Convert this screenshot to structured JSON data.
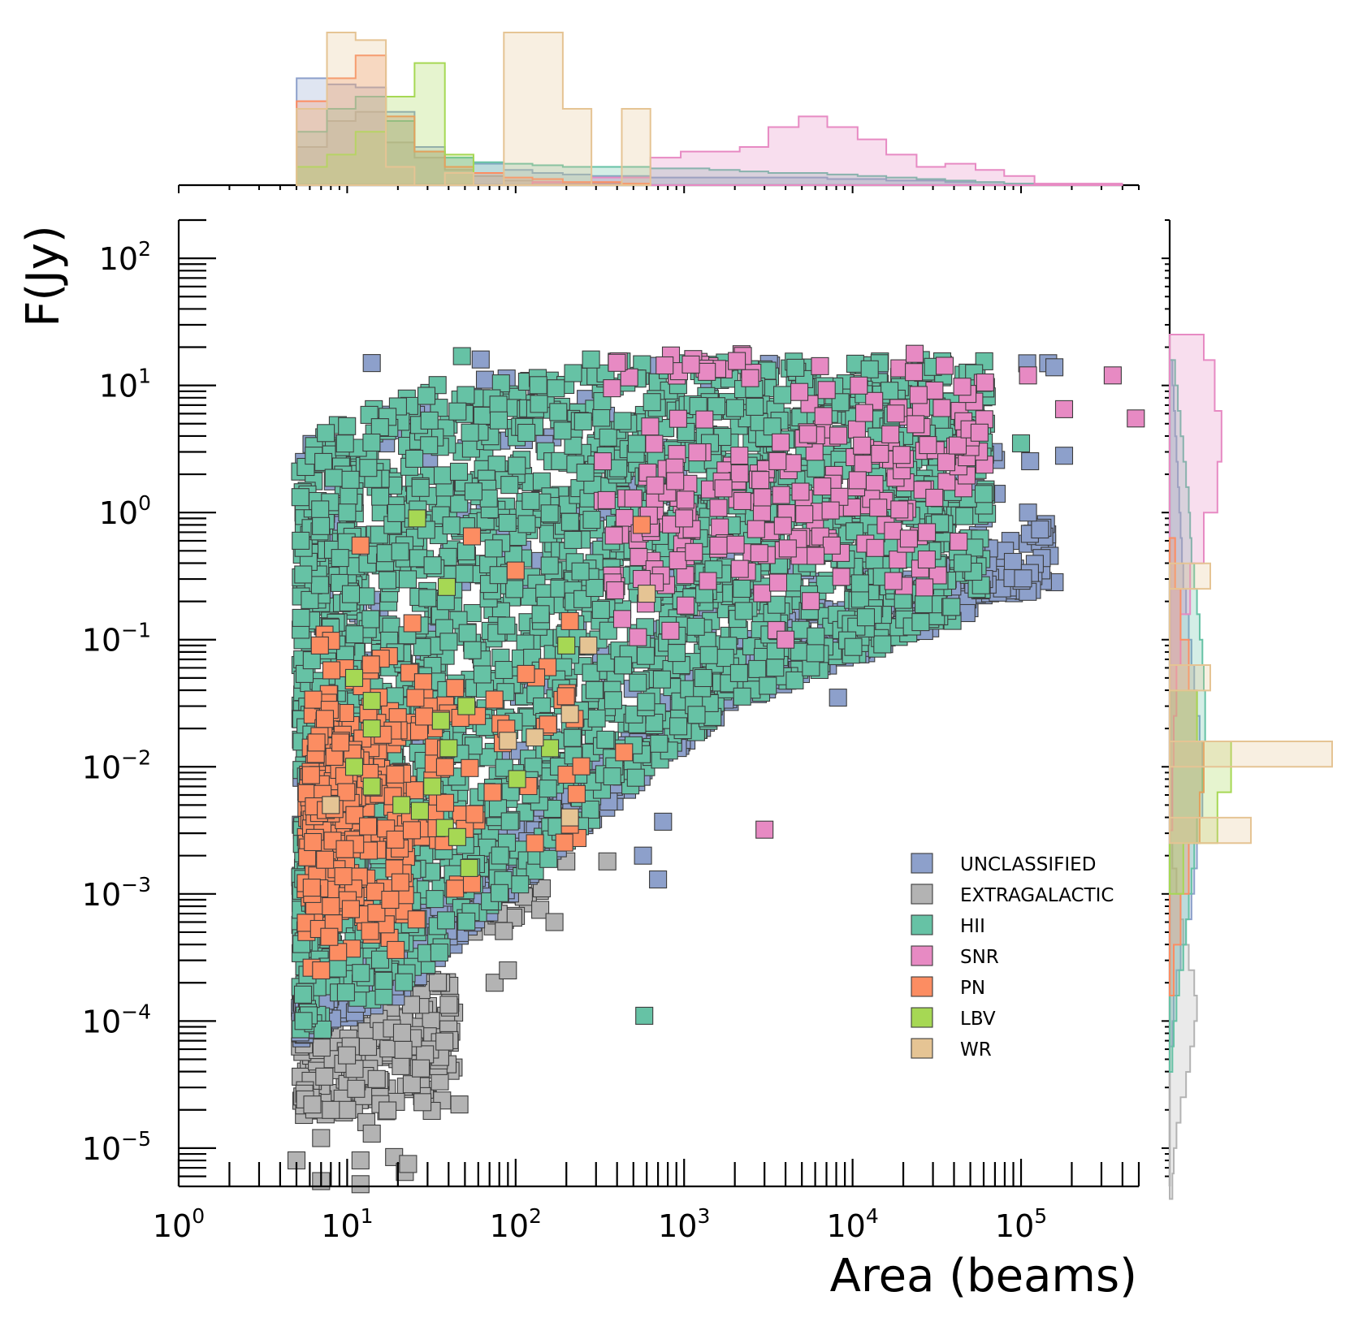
{
  "chart_data": {
    "type": "scatter",
    "xlabel": "Area (beams)",
    "ylabel": "F(Jy)",
    "xscale": "log",
    "yscale": "log",
    "xlim": [
      1,
      500000
    ],
    "ylim": [
      5e-06,
      200
    ],
    "x_tick_labels": [
      {
        "v": 1,
        "base": "10",
        "exp": "0"
      },
      {
        "v": 10,
        "base": "10",
        "exp": "1"
      },
      {
        "v": 100,
        "base": "10",
        "exp": "2"
      },
      {
        "v": 1000,
        "base": "10",
        "exp": "3"
      },
      {
        "v": 10000,
        "base": "10",
        "exp": "4"
      },
      {
        "v": 100000,
        "base": "10",
        "exp": "5"
      }
    ],
    "y_tick_labels": [
      {
        "v": 1e-05,
        "base": "10",
        "exp": "−5"
      },
      {
        "v": 0.0001,
        "base": "10",
        "exp": "−4"
      },
      {
        "v": 0.001,
        "base": "10",
        "exp": "−3"
      },
      {
        "v": 0.01,
        "base": "10",
        "exp": "−2"
      },
      {
        "v": 0.1,
        "base": "10",
        "exp": "−1"
      },
      {
        "v": 1,
        "base": "10",
        "exp": "0"
      },
      {
        "v": 10,
        "base": "10",
        "exp": "1"
      },
      {
        "v": 100,
        "base": "10",
        "exp": "2"
      }
    ],
    "grid": false,
    "legend_position": "lower-right",
    "marginal_histograms": [
      "top",
      "right"
    ],
    "series": [
      {
        "name": "UNCLASSIFIED",
        "color": "#8da0cb",
        "approx_points": 2200,
        "points": [
          [
            14,
            15
          ],
          [
            62,
            16
          ],
          [
            17,
            3.5
          ],
          [
            9,
            0.8
          ],
          [
            5.5,
            1.0
          ],
          [
            4000,
            0.1
          ],
          [
            8200,
            0.035
          ],
          [
            15000,
            0.1
          ],
          [
            29000,
            0.22
          ],
          [
            180000,
            2.8
          ],
          [
            110000,
            1.0
          ],
          [
            570,
            0.002
          ],
          [
            700,
            0.0013
          ],
          [
            750,
            0.0037
          ],
          [
            260,
            0.004
          ],
          [
            12000,
            0.6
          ],
          [
            60000,
            0.9
          ]
        ],
        "histogram_x": {
          "bins_log10": [
            0.7,
            0.88,
            1.05,
            1.23,
            1.4,
            1.58,
            1.75,
            1.93,
            2.1,
            2.28,
            2.45,
            2.63,
            2.8,
            2.98,
            3.15,
            3.33,
            3.5,
            3.68,
            3.85,
            4.03,
            4.2,
            4.38,
            4.55,
            4.73,
            4.9,
            5.08
          ],
          "counts": [
            0.7,
            0.66,
            0.64,
            0.48,
            0.25,
            0.18,
            0.14,
            0.1,
            0.08,
            0.07,
            0.06,
            0.06,
            0.05,
            0.05,
            0.05,
            0.05,
            0.05,
            0.05,
            0.04,
            0.04,
            0.03,
            0.03,
            0.02,
            0.02,
            0.01
          ]
        },
        "histogram_y": {
          "bins_log10": [
            -4.2,
            -4,
            -3.8,
            -3.6,
            -3.4,
            -3.2,
            -3,
            -2.8,
            -2.6,
            -2.4,
            -2.2,
            -2,
            -1.8,
            -1.6,
            -1.4,
            -1.2,
            -1,
            -0.8,
            -0.6,
            -0.4,
            -0.2,
            0,
            0.2,
            0.4,
            0.6,
            0.8,
            1,
            1.2
          ],
          "counts": [
            0.02,
            0.03,
            0.05,
            0.08,
            0.12,
            0.16,
            0.18,
            0.2,
            0.22,
            0.24,
            0.25,
            0.24,
            0.22,
            0.2,
            0.18,
            0.16,
            0.14,
            0.12,
            0.1,
            0.09,
            0.08,
            0.07,
            0.06,
            0.05,
            0.04,
            0.03,
            0.02
          ]
        }
      },
      {
        "name": "EXTRAGALACTIC",
        "color": "#b3b3b3",
        "approx_points": 400,
        "points": [
          [
            10,
            2e-05
          ],
          [
            8,
            2e-05
          ],
          [
            13,
            1.6e-05
          ],
          [
            14,
            1.3e-05
          ],
          [
            7,
            1.2e-05
          ],
          [
            12,
            8e-06
          ],
          [
            19,
            8.5e-06
          ],
          [
            5,
            8e-06
          ],
          [
            7,
            5.5e-06
          ],
          [
            12,
            5.2e-06
          ],
          [
            22,
            6.5e-06
          ],
          [
            28,
            2.3e-05
          ],
          [
            23,
            7.5e-06
          ],
          [
            75,
            0.0002
          ],
          [
            90,
            0.00025
          ],
          [
            140,
            0.00075
          ],
          [
            170,
            0.0006
          ],
          [
            200,
            0.0018
          ],
          [
            350,
            0.0018
          ]
        ],
        "histogram_x": {
          "bins_log10": [
            0.7,
            0.88,
            1.05,
            1.23,
            1.4,
            1.58,
            1.75,
            1.93,
            2.1,
            2.28,
            2.45,
            2.63,
            2.8
          ],
          "counts": [
            0.25,
            0.42,
            0.48,
            0.28,
            0.18,
            0.1,
            0.06,
            0.03,
            0.02,
            0.01,
            0.01,
            0.01
          ]
        },
        "histogram_y": {
          "bins_log10": [
            -5.4,
            -5.2,
            -5,
            -4.8,
            -4.6,
            -4.4,
            -4.2,
            -4,
            -3.8,
            -3.6,
            -3.4,
            -3.2,
            -3,
            -2.8,
            -2.6
          ],
          "counts": [
            0.02,
            0.03,
            0.05,
            0.08,
            0.12,
            0.15,
            0.18,
            0.2,
            0.18,
            0.14,
            0.1,
            0.08,
            0.05,
            0.02
          ]
        }
      },
      {
        "name": "HII",
        "color": "#66c2a5",
        "approx_points": 6000,
        "points": [
          [
            280,
            16
          ],
          [
            48,
            17
          ],
          [
            10,
            1.0
          ],
          [
            5.3,
            0.6
          ],
          [
            5.5,
            0.0001
          ],
          [
            580,
            0.00011
          ],
          [
            30000,
            14
          ],
          [
            60000,
            1.4
          ],
          [
            45000,
            0.4
          ],
          [
            100000,
            3.5
          ],
          [
            12000,
            0.15
          ]
        ],
        "histogram_x": {
          "bins_log10": [
            0.7,
            0.88,
            1.05,
            1.23,
            1.4,
            1.58,
            1.75,
            1.93,
            2.1,
            2.28,
            2.45,
            2.63,
            2.8,
            2.98,
            3.15,
            3.33,
            3.5,
            3.68,
            3.85,
            4.03,
            4.2,
            4.38,
            4.55,
            4.73,
            4.9,
            5.08
          ],
          "counts": [
            0.35,
            0.5,
            0.58,
            0.42,
            0.22,
            0.18,
            0.15,
            0.14,
            0.13,
            0.12,
            0.12,
            0.12,
            0.11,
            0.11,
            0.1,
            0.09,
            0.08,
            0.08,
            0.07,
            0.06,
            0.05,
            0.04,
            0.03,
            0.02,
            0.01
          ]
        },
        "histogram_y": {
          "bins_log10": [
            -4.4,
            -4.2,
            -4,
            -3.8,
            -3.6,
            -3.4,
            -3.2,
            -3,
            -2.8,
            -2.6,
            -2.4,
            -2.2,
            -2,
            -1.8,
            -1.6,
            -1.4,
            -1.2,
            -1,
            -0.8,
            -0.6,
            -0.4,
            -0.2,
            0,
            0.2,
            0.4,
            0.6,
            0.8,
            1,
            1.2
          ],
          "counts": [
            0.02,
            0.03,
            0.05,
            0.07,
            0.1,
            0.12,
            0.14,
            0.16,
            0.18,
            0.2,
            0.22,
            0.24,
            0.25,
            0.26,
            0.26,
            0.25,
            0.24,
            0.22,
            0.2,
            0.18,
            0.16,
            0.15,
            0.14,
            0.12,
            0.1,
            0.08,
            0.06,
            0.04
          ]
        }
      },
      {
        "name": "SNR",
        "color": "#e78ac3",
        "approx_points": 300,
        "points": [
          [
            350000,
            12
          ],
          [
            480000,
            5.5
          ],
          [
            180000,
            6.5
          ],
          [
            110000,
            12
          ],
          [
            3000,
            0.0032
          ],
          [
            4000,
            0.1
          ],
          [
            560,
            0.3
          ],
          [
            1000,
            0.9
          ]
        ],
        "histogram_x": {
          "bins_log10": [
            2.1,
            2.45,
            2.8,
            2.98,
            3.15,
            3.33,
            3.5,
            3.68,
            3.85,
            4.03,
            4.2,
            4.38,
            4.55,
            4.73,
            4.9,
            5.08,
            5.25,
            5.43,
            5.6
          ],
          "counts": [
            0.02,
            0.05,
            0.18,
            0.22,
            0.22,
            0.25,
            0.38,
            0.45,
            0.38,
            0.3,
            0.2,
            0.12,
            0.14,
            0.1,
            0.06,
            0.01,
            0.01,
            0.01
          ]
        },
        "histogram_y": {
          "bins_log10": [
            -2.5,
            -2,
            -1.6,
            -1.2,
            -0.8,
            -0.4,
            0,
            0.4,
            0.8,
            1.2
          ],
          "counts": [
            0.02,
            0.03,
            0.05,
            0.08,
            0.15,
            0.25,
            0.35,
            0.38,
            0.33,
            0.25
          ]
        }
      },
      {
        "name": "PN",
        "color": "#fc8d62",
        "approx_points": 700,
        "points": [
          [
            12,
            0.55
          ],
          [
            55,
            0.65
          ],
          [
            100,
            0.35
          ],
          [
            210,
            0.14
          ],
          [
            560,
            0.8
          ],
          [
            440,
            0.013
          ],
          [
            210,
            0.0035
          ],
          [
            55,
            0.0012
          ],
          [
            7,
            0.00025
          ],
          [
            8,
            0.0008
          ],
          [
            18,
            0.0009
          ]
        ],
        "histogram_x": {
          "bins_log10": [
            0.7,
            0.88,
            1.05,
            1.23,
            1.4,
            1.58,
            1.75,
            1.93,
            2.1,
            2.28,
            2.45,
            2.63,
            2.8
          ],
          "counts": [
            0.55,
            0.7,
            0.85,
            0.45,
            0.22,
            0.12,
            0.08,
            0.05,
            0.04,
            0.02,
            0.02,
            0.01
          ]
        },
        "histogram_y": {
          "bins_log10": [
            -3.8,
            -3.4,
            -3,
            -2.6,
            -2.2,
            -1.8,
            -1.4,
            -1,
            -0.6,
            -0.2
          ],
          "counts": [
            0.03,
            0.08,
            0.14,
            0.22,
            0.25,
            0.2,
            0.14,
            0.08,
            0.04
          ]
        }
      },
      {
        "name": "LBV",
        "color": "#a6d854",
        "approx_points": 26,
        "points": [
          [
            26,
            0.9
          ],
          [
            39,
            0.26
          ],
          [
            200,
            0.09
          ],
          [
            11,
            0.05
          ],
          [
            14,
            0.033
          ],
          [
            36,
            0.023
          ],
          [
            51,
            0.03
          ],
          [
            14,
            0.02
          ],
          [
            11,
            0.01
          ],
          [
            40,
            0.014
          ],
          [
            102,
            0.008
          ],
          [
            160,
            0.014
          ],
          [
            14,
            0.007
          ],
          [
            21,
            0.005
          ],
          [
            32,
            0.007
          ],
          [
            38,
            0.0033
          ],
          [
            45,
            0.0028
          ],
          [
            53,
            0.0016
          ],
          [
            27,
            0.0045
          ]
        ],
        "histogram_x": {
          "bins_log10": [
            0.7,
            0.88,
            1.05,
            1.23,
            1.4,
            1.58,
            1.75
          ],
          "counts": [
            0.12,
            0.2,
            0.35,
            0.58,
            0.8,
            0.2
          ]
        },
        "histogram_y": {
          "bins_log10": [
            -3,
            -2.6,
            -2.2,
            -1.8,
            -1.4
          ],
          "counts": [
            0.1,
            0.35,
            0.45,
            0.2
          ]
        }
      },
      {
        "name": "WR",
        "color": "#e5c494",
        "approx_points": 10,
        "points": [
          [
            600,
            0.23
          ],
          [
            270,
            0.09
          ],
          [
            210,
            0.026
          ],
          [
            90,
            0.016
          ],
          [
            130,
            0.017
          ],
          [
            8,
            0.005
          ],
          [
            210,
            0.004
          ]
        ],
        "histogram_x": {
          "bins_log10": [
            0.7,
            0.88,
            1.05,
            1.23,
            1.4,
            1.58,
            1.75,
            1.93,
            2.1,
            2.28,
            2.45,
            2.63,
            2.8
          ],
          "counts": [
            0.5,
            1.0,
            0.95,
            0.12,
            0.0,
            0.08,
            0.0,
            1.0,
            1.0,
            0.5,
            0.0,
            0.5
          ]
        },
        "histogram_y": {
          "bins_log10": [
            -2.6,
            -2.4,
            -2.2,
            -2,
            -1.8,
            -1.6,
            -1.4,
            -1.2,
            -1,
            -0.8,
            -0.6,
            -0.4
          ],
          "counts": [
            1.0,
            0.0,
            0.0,
            2.0,
            0.0,
            0.0,
            0.5,
            0.0,
            0.0,
            0.0,
            0.5
          ]
        }
      }
    ]
  }
}
